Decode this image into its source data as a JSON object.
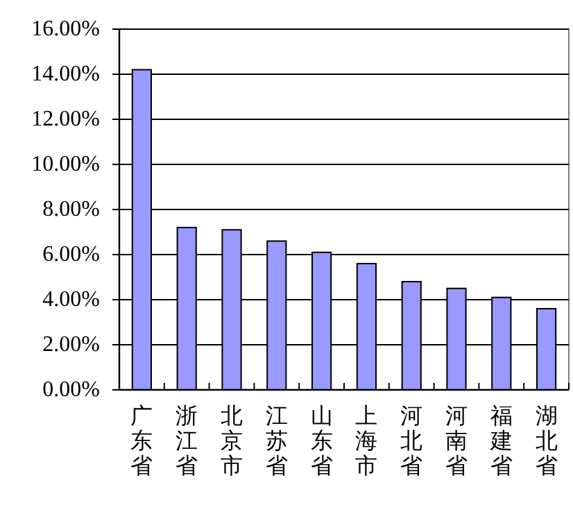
{
  "chart_data": {
    "type": "bar",
    "categories": [
      "广东省",
      "浙江省",
      "北京市",
      "江苏省",
      "山东省",
      "上海市",
      "河北省",
      "河南省",
      "福建省",
      "湖北省"
    ],
    "values": [
      14.2,
      7.2,
      7.1,
      6.6,
      6.1,
      5.6,
      4.8,
      4.5,
      4.1,
      3.6
    ],
    "color": "#9999ff",
    "ylim": [
      0,
      16
    ],
    "yticks": [
      {
        "value": 0,
        "label": "0.00%"
      },
      {
        "value": 2,
        "label": "2.00%"
      },
      {
        "value": 4,
        "label": "4.00%"
      },
      {
        "value": 6,
        "label": "6.00%"
      },
      {
        "value": 8,
        "label": "8.00%"
      },
      {
        "value": 10,
        "label": "10.00%"
      },
      {
        "value": 12,
        "label": "12.00%"
      },
      {
        "value": 14,
        "label": "14.00%"
      },
      {
        "value": 16,
        "label": "16.00%"
      }
    ],
    "grid": "y"
  }
}
